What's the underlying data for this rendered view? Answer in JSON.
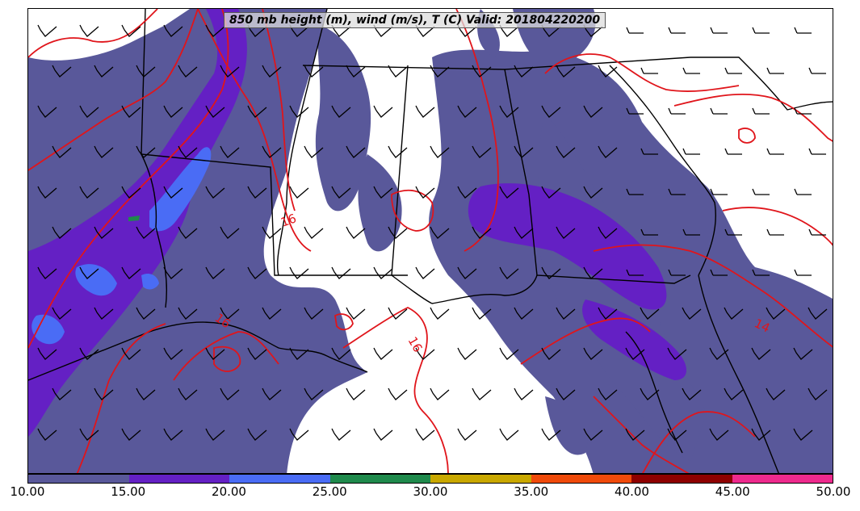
{
  "title": "850 mb height (m), wind (m/s), T (C) Valid: 201804220200",
  "colorbar": {
    "colors": [
      "#59589a",
      "#6420c4",
      "#4a6cf5",
      "#1f8a4c",
      "#c9a800",
      "#f04a0a",
      "#8e0000",
      "#ee2a8d"
    ],
    "ticks": [
      "10.00",
      "15.00",
      "20.00",
      "25.00",
      "30.00",
      "35.00",
      "40.00",
      "45.00",
      "50.00"
    ]
  },
  "contour_labels": [
    "16",
    "16",
    "16",
    "14"
  ],
  "colors": {
    "contour": "#e0151b",
    "boundaries": "#000000",
    "background": "#ffffff"
  }
}
